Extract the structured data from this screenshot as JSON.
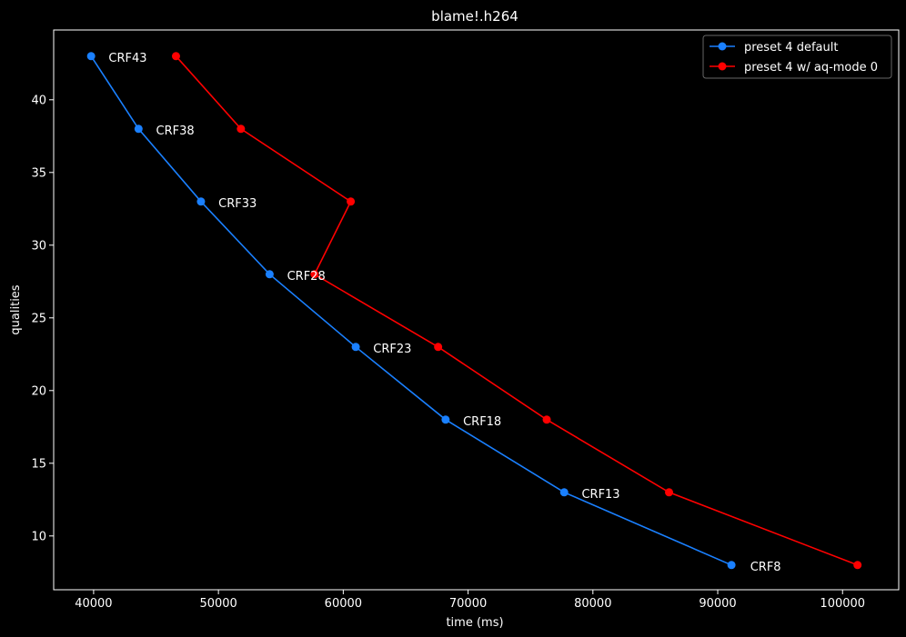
{
  "chart_data": {
    "type": "line",
    "title": "blame!.h264",
    "xlabel": "time (ms)",
    "ylabel": "qualities",
    "xlim": [
      36800,
      104500
    ],
    "ylim": [
      6.3,
      44.8
    ],
    "x_ticks": [
      40000,
      50000,
      60000,
      70000,
      80000,
      90000,
      100000
    ],
    "y_ticks": [
      10,
      15,
      20,
      25,
      30,
      35,
      40
    ],
    "grid": false,
    "legend_position": "top-right",
    "series": [
      {
        "name": "preset 4 default",
        "color": "#1a80ff",
        "x": [
          39800,
          43600,
          48600,
          54100,
          61000,
          68200,
          77700,
          91100
        ],
        "y": [
          43,
          38,
          33,
          28,
          23,
          18,
          13,
          8
        ]
      },
      {
        "name": "preset 4 w/ aq-mode 0",
        "color": "#ff0000",
        "x": [
          46600,
          51800,
          60600,
          57700,
          67600,
          76300,
          86100,
          101200
        ],
        "y": [
          43,
          38,
          33,
          28,
          23,
          18,
          13,
          8
        ]
      }
    ],
    "annotations": [
      {
        "text": "CRF43",
        "x": 41200,
        "y": 42.9
      },
      {
        "text": "CRF38",
        "x": 45000,
        "y": 37.9
      },
      {
        "text": "CRF33",
        "x": 50000,
        "y": 32.9
      },
      {
        "text": "CRF28",
        "x": 55500,
        "y": 27.9
      },
      {
        "text": "CRF23",
        "x": 62400,
        "y": 22.9
      },
      {
        "text": "CRF18",
        "x": 69600,
        "y": 17.9
      },
      {
        "text": "CRF13",
        "x": 79100,
        "y": 12.9
      },
      {
        "text": "CRF8",
        "x": 92600,
        "y": 7.9
      }
    ]
  }
}
